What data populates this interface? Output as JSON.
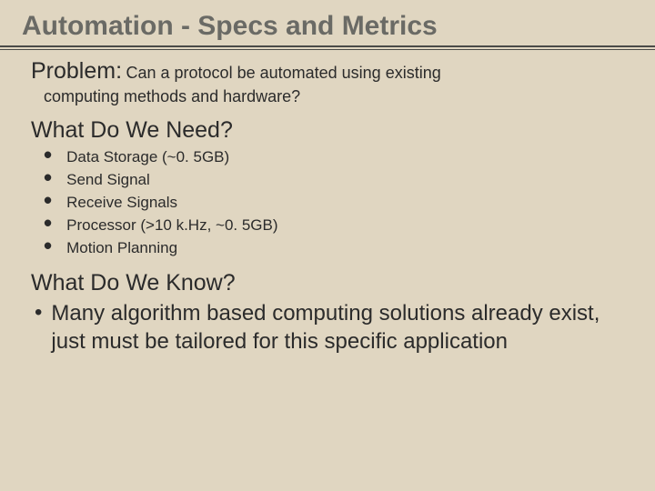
{
  "colors": {
    "background": "#e0d6c1",
    "title": "#6a6a65",
    "underline": "#4a4a48",
    "body": "#2b2b2b"
  },
  "title": "Automation - Specs and Metrics",
  "problem": {
    "label": "Problem:",
    "text": "Can a protocol be automated using existing",
    "cont": "computing methods and hardware?"
  },
  "need": {
    "heading": "What Do We Need?",
    "items": [
      "Data Storage (~0. 5GB)",
      "Send Signal",
      "Receive Signals",
      "Processor (>10 k.Hz, ~0. 5GB)",
      "Motion Planning"
    ]
  },
  "know": {
    "heading": "What Do We Know?",
    "items": [
      "Many algorithm based computing solutions already exist, just must be tailored for this specific application"
    ]
  },
  "typography": {
    "title_fontsize": 30,
    "section_fontsize": 25,
    "problem_text_fontsize": 18,
    "bullet_fontsize": 17,
    "know_text_fontsize": 24
  }
}
